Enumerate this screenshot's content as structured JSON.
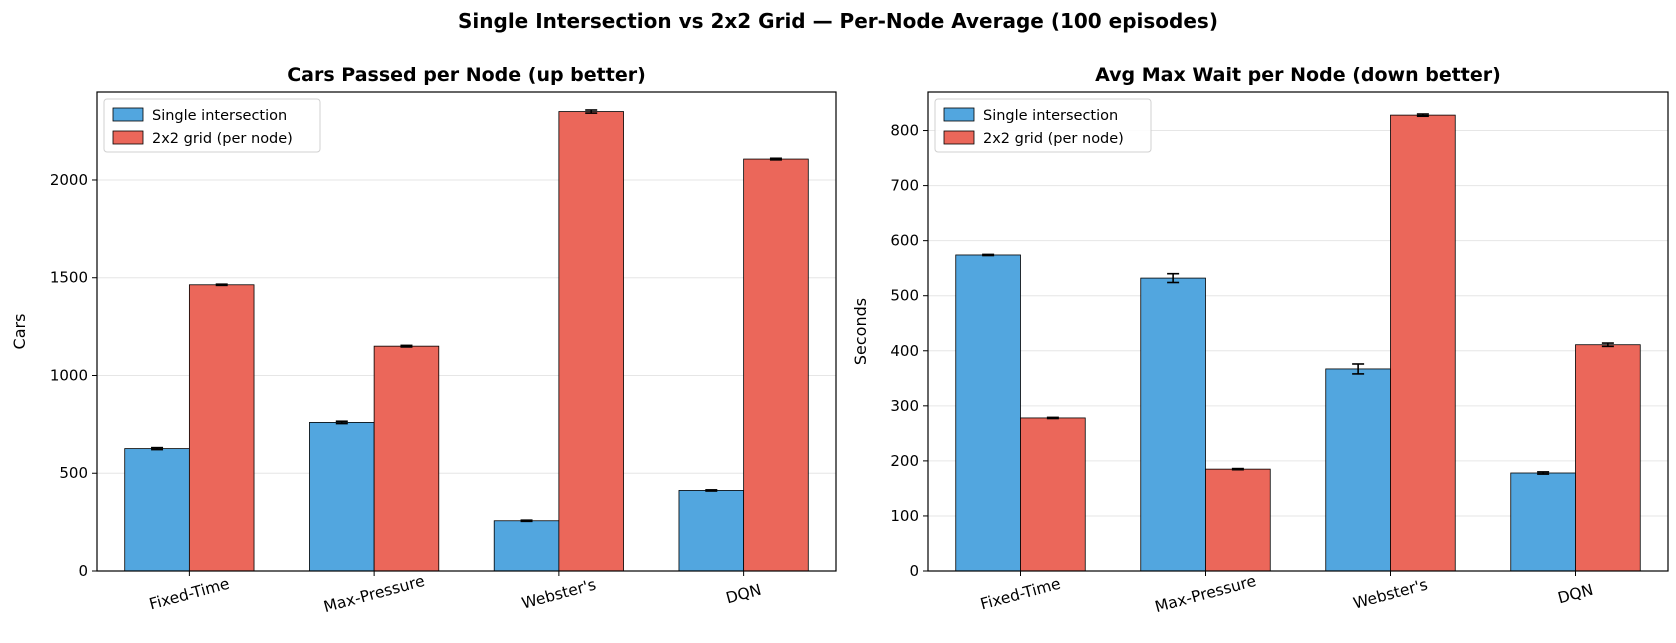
{
  "figure": {
    "suptitle": "Single Intersection vs 2x2 Grid — Per-Node Average  (100 episodes)"
  },
  "colors": {
    "single": "#52a6df",
    "grid": "#eb675a",
    "edge": "#000000",
    "gridline": "#e6e6e6"
  },
  "chart_data": [
    {
      "type": "bar",
      "title": "Cars Passed per Node (up better)",
      "xlabel": "",
      "ylabel": "Cars",
      "categories": [
        "Fixed-Time",
        "Max-Pressure",
        "Webster's",
        "DQN"
      ],
      "series": [
        {
          "name": "Single intersection",
          "values": [
            626,
            760,
            257,
            412
          ],
          "errors": [
            5,
            6,
            3,
            3
          ]
        },
        {
          "name": "2x2 grid (per node)",
          "values": [
            1464,
            1150,
            2350,
            2107
          ],
          "errors": [
            3,
            4,
            8,
            4
          ]
        }
      ],
      "ylim": [
        0,
        2450
      ],
      "yticks": [
        0,
        500,
        1000,
        1500,
        2000
      ],
      "grid": "y",
      "legend": "top-left"
    },
    {
      "type": "bar",
      "title": "Avg Max Wait per Node (down better)",
      "xlabel": "",
      "ylabel": "Seconds",
      "categories": [
        "Fixed-Time",
        "Max-Pressure",
        "Webster's",
        "DQN"
      ],
      "series": [
        {
          "name": "Single intersection",
          "values": [
            574,
            532,
            367,
            178
          ],
          "errors": [
            1,
            8,
            9,
            2
          ]
        },
        {
          "name": "2x2 grid (per node)",
          "values": [
            278,
            185,
            828,
            411
          ],
          "errors": [
            1,
            1,
            2,
            3
          ]
        }
      ],
      "ylim": [
        0,
        870
      ],
      "yticks": [
        0,
        100,
        200,
        300,
        400,
        500,
        600,
        700,
        800
      ],
      "grid": "y",
      "legend": "top-left"
    }
  ]
}
